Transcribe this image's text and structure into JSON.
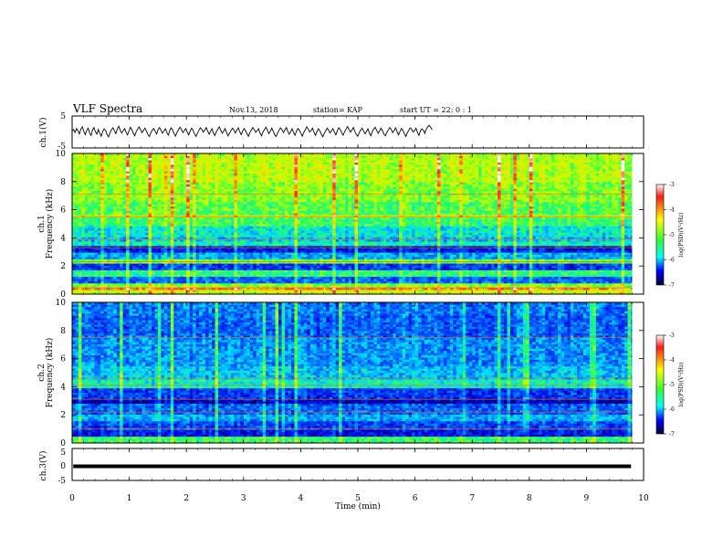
{
  "header": {
    "title": "VLF Spectra",
    "date": "Nov.13, 2018",
    "station": "station= KAP",
    "start": "start  UT =  22: 0  : 1"
  },
  "chart_data": [
    {
      "type": "line",
      "name": "ch1-waveform",
      "ylabel": "ch.1(V)",
      "ylim": [
        -5,
        5
      ],
      "xlim": [
        0,
        10
      ],
      "yticks": [
        "5",
        "-5"
      ],
      "x_step": 0.0255,
      "y": [
        0.3,
        0.8,
        -0.2,
        1.1,
        0.4,
        -0.6,
        0.9,
        1.6,
        0.2,
        -0.8,
        0.5,
        1.2,
        -0.3,
        -1.1,
        0.6,
        1.4,
        0.1,
        -0.7,
        0.8,
        -0.4,
        -1.3,
        0.2,
        1.0,
        0.5,
        -0.9,
        -1.5,
        -0.2,
        0.7,
        1.3,
        0.4,
        -0.5,
        0.9,
        1.8,
        0.6,
        -0.3,
        0.4,
        1.1,
        -0.1,
        -0.9,
        0.3,
        1.5,
        0.8,
        -0.4,
        -1.2,
        0.1,
        0.9,
        1.6,
        0.7,
        -0.2,
        0.5,
        1.2,
        0.3,
        -0.8,
        -1.4,
        -0.3,
        0.6,
        1.1,
        0.2,
        -0.6,
        0.8,
        1.4,
        0.5,
        -0.4,
        0.3,
        1.0,
        -0.2,
        -1.0,
        0.4,
        1.3,
        0.6,
        -0.5,
        -1.3,
        -0.1,
        0.7,
        1.5,
        0.9,
        -0.2,
        0.4,
        1.1,
        0.0,
        -0.9,
        0.3,
        1.2,
        0.5,
        -0.6,
        -1.4,
        -0.4,
        0.5,
        1.3,
        0.8,
        -0.1,
        0.6,
        1.4,
        0.3,
        -0.7,
        0.2,
        1.0,
        -0.3,
        -1.1,
        0.1,
        0.9,
        1.6,
        0.6,
        -0.4,
        0.2,
        1.1,
        -0.2,
        -1.2,
        -0.5,
        0.4,
        1.2,
        0.7,
        -0.3,
        0.5,
        1.3,
        0.1,
        -0.8,
        0.3,
        1.1,
        0.4,
        -0.6,
        -1.3,
        -0.2,
        0.6,
        1.4,
        0.8,
        -0.1,
        0.4,
        1.0,
        -0.4,
        -1.2,
        0.0,
        0.8,
        1.5,
        0.6,
        -0.5,
        0.2,
        1.2,
        0.3,
        -0.9,
        -1.4,
        -0.3,
        0.5,
        1.3,
        0.7,
        -0.2,
        0.6,
        1.4,
        0.2,
        -0.7,
        0.1,
        1.0,
        -0.2,
        -1.0,
        0.3,
        1.1,
        0.5,
        -0.4,
        -1.3,
        -0.1,
        0.7,
        1.6,
        0.9,
        0.0,
        0.5,
        1.2,
        -0.1,
        -1.1,
        0.2,
        1.0,
        0.4,
        -0.7,
        -1.5,
        -0.4,
        0.4,
        1.2,
        0.6,
        -0.3,
        0.3,
        1.1,
        0.0,
        -0.9,
        0.4,
        1.3,
        0.7,
        -0.2,
        -1.0,
        0.1,
        0.9,
        1.7,
        0.8,
        -0.1,
        0.6,
        1.4,
        0.2,
        -0.8,
        -1.3,
        -0.2,
        0.6,
        1.2,
        0.3,
        -0.6,
        0.2,
        1.0,
        -0.3,
        -1.2,
        0.1,
        0.9,
        1.5,
        0.5,
        -0.4,
        0.3,
        1.2,
        0.4,
        -0.7,
        -1.2,
        -0.1,
        0.7,
        1.4,
        0.8,
        -0.2,
        0.5,
        1.3,
        0.1,
        -0.9,
        0.2,
        1.1,
        0.5,
        -0.5,
        -1.4,
        -0.3,
        0.5,
        1.3,
        0.9,
        0.0,
        0.4,
        1.2,
        -0.2,
        -1.1,
        0.3,
        1.0,
        0.6,
        -0.4,
        0.8,
        1.6,
        2.1,
        1.5,
        0.7
      ]
    },
    {
      "type": "heatmap",
      "name": "ch1-spectrogram",
      "ylabel_top": "ch.1",
      "ylabel": "Frequency  (kHz)",
      "ylim": [
        0,
        10
      ],
      "xlim": [
        0,
        10
      ],
      "yticks": [
        "0",
        "2",
        "4",
        "6",
        "8",
        "10"
      ],
      "colorbar": {
        "label": "log(PSD)(V²/Hz)",
        "ticks": [
          "-3",
          "-4",
          "-5",
          "-6",
          "-7"
        ],
        "range": [
          -7,
          -3
        ]
      },
      "bands": [
        {
          "f0": 0.0,
          "f1": 0.3,
          "level": -4.3
        },
        {
          "f0": 0.3,
          "f1": 0.5,
          "level": -3.6
        },
        {
          "f0": 0.5,
          "f1": 0.8,
          "level": -4.6
        },
        {
          "f0": 0.8,
          "f1": 1.3,
          "level": -5.9
        },
        {
          "f0": 1.3,
          "f1": 1.7,
          "level": -5.0
        },
        {
          "f0": 1.7,
          "f1": 2.2,
          "level": -6.1
        },
        {
          "f0": 2.2,
          "f1": 2.5,
          "level": -4.7
        },
        {
          "f0": 2.5,
          "f1": 3.0,
          "level": -5.6
        },
        {
          "f0": 3.0,
          "f1": 3.4,
          "level": -6.3
        },
        {
          "f0": 3.4,
          "f1": 3.7,
          "level": -5.2
        },
        {
          "f0": 3.7,
          "f1": 4.1,
          "level": -5.5
        },
        {
          "f0": 4.1,
          "f1": 4.8,
          "level": -5.3
        },
        {
          "f0": 4.8,
          "f1": 5.4,
          "level": -4.9
        },
        {
          "f0": 5.4,
          "f1": 5.6,
          "level": -4.2
        },
        {
          "f0": 5.6,
          "f1": 6.5,
          "level": -4.8
        },
        {
          "f0": 6.5,
          "f1": 8.0,
          "level": -4.6
        },
        {
          "f0": 8.0,
          "f1": 10.0,
          "level": -4.4
        }
      ],
      "lines_khz": [
        0.45,
        2.3,
        3.3,
        3.9,
        5.5,
        7.1
      ]
    },
    {
      "type": "heatmap",
      "name": "ch2-spectrogram",
      "ylabel_top": "ch.2",
      "ylabel": "Frequency  (kHz)",
      "ylim": [
        0,
        10
      ],
      "xlim": [
        0,
        10
      ],
      "yticks": [
        "0",
        "2",
        "4",
        "6",
        "8",
        "10"
      ],
      "colorbar": {
        "label": "log(PSD)(V²/Hz)",
        "ticks": [
          "-3",
          "-4",
          "-5",
          "-6",
          "-7"
        ],
        "range": [
          -7,
          -3
        ]
      },
      "bands": [
        {
          "f0": 0.0,
          "f1": 0.5,
          "level": -4.9
        },
        {
          "f0": 0.5,
          "f1": 0.9,
          "level": -6.3
        },
        {
          "f0": 0.9,
          "f1": 1.6,
          "level": -6.0
        },
        {
          "f0": 1.6,
          "f1": 2.1,
          "level": -5.6
        },
        {
          "f0": 2.1,
          "f1": 2.8,
          "level": -5.9
        },
        {
          "f0": 2.8,
          "f1": 3.2,
          "level": -6.5
        },
        {
          "f0": 3.2,
          "f1": 3.9,
          "level": -6.1
        },
        {
          "f0": 3.9,
          "f1": 4.5,
          "level": -5.2
        },
        {
          "f0": 4.5,
          "f1": 5.5,
          "level": -5.5
        },
        {
          "f0": 5.5,
          "f1": 7.5,
          "level": -5.7
        },
        {
          "f0": 7.5,
          "f1": 9.0,
          "level": -5.9
        },
        {
          "f0": 9.0,
          "f1": 10.0,
          "level": -5.8
        }
      ],
      "lines_khz": [
        1.0,
        2.2,
        3.1,
        4.1,
        4.6,
        7.5
      ]
    },
    {
      "type": "line",
      "name": "ch3-waveform",
      "ylabel": "ch.3(V)",
      "ylim": [
        -5,
        5
      ],
      "xlim": [
        0,
        10
      ],
      "yticks": [
        "5",
        "0",
        "-5"
      ],
      "constant_value": 0.0
    }
  ],
  "xaxis": {
    "label": "Time  (min)",
    "ticks": [
      "0",
      "1",
      "2",
      "3",
      "4",
      "5",
      "6",
      "7",
      "8",
      "9",
      "10"
    ]
  }
}
